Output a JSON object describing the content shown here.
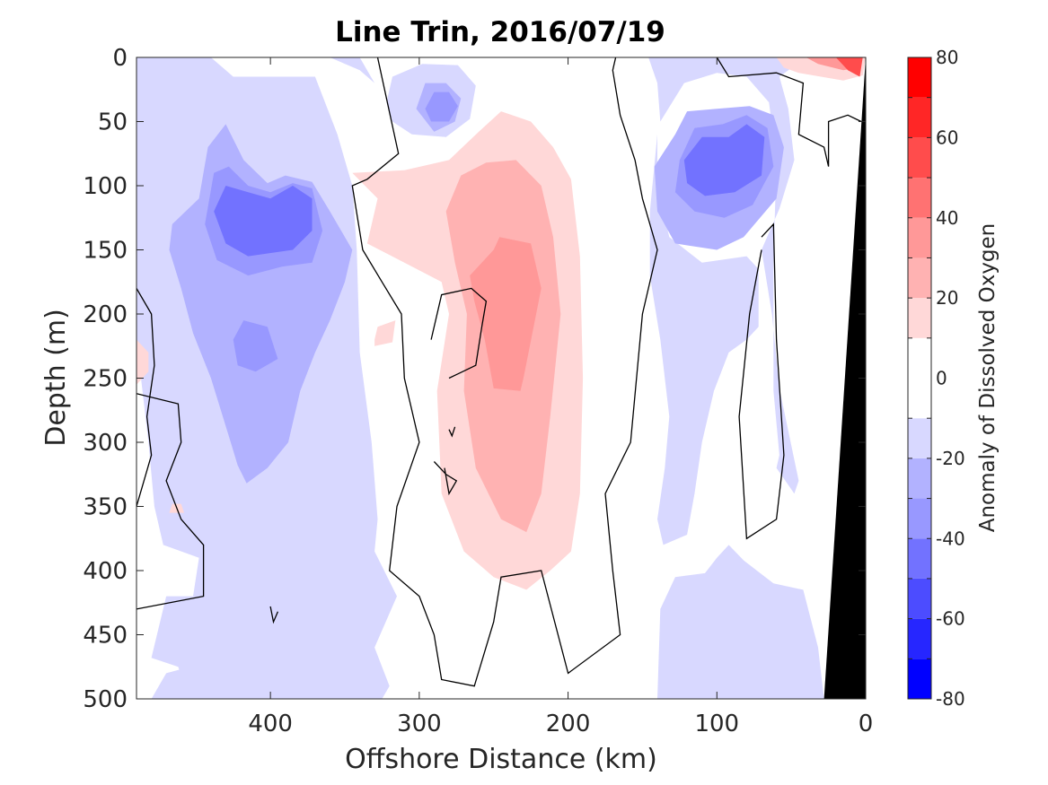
{
  "chart_data": {
    "type": "heatmap",
    "subtype": "filled-contour section",
    "title": "Line Trin, 2016/07/19",
    "xlabel": "Offshore Distance (km)",
    "ylabel": "Depth (m)",
    "xlim": [
      490,
      0
    ],
    "x_reversed": true,
    "ylim": [
      0,
      500
    ],
    "y_reversed": true,
    "x_ticks": [
      400,
      300,
      200,
      100,
      0
    ],
    "y_ticks": [
      0,
      50,
      100,
      150,
      200,
      250,
      300,
      350,
      400,
      450,
      500
    ],
    "colorbar": {
      "label": "Anomaly of Dissolved Oxygen",
      "range": [
        -80,
        80
      ],
      "ticks": [
        -80,
        -60,
        -40,
        -20,
        0,
        20,
        40,
        60,
        80
      ],
      "levels": [
        -80,
        -70,
        -60,
        -50,
        -40,
        -30,
        -20,
        -10,
        10,
        20,
        30,
        40,
        50,
        60,
        70,
        80
      ],
      "colors": [
        "#0000ff",
        "#2626ff",
        "#4c4cff",
        "#7272ff",
        "#9898ff",
        "#b2b2ff",
        "#d8d8ff",
        "#ffffff",
        "#ffd8d8",
        "#ffb2b2",
        "#ff9898",
        "#ff7272",
        "#ff4c4c",
        "#ff2626",
        "#ff0000"
      ]
    },
    "features": [
      {
        "kind": "negative anomaly core",
        "center_km": 385,
        "center_depth_m": 125,
        "min_value": -50
      },
      {
        "kind": "negative anomaly core",
        "center_km": 290,
        "center_depth_m": 45,
        "min_value": -30
      },
      {
        "kind": "negative anomaly core",
        "center_km": 95,
        "center_depth_m": 80,
        "min_value": -50
      },
      {
        "kind": "positive anomaly core",
        "center_km": 245,
        "center_depth_m": 210,
        "min_value": 30
      },
      {
        "kind": "positive anomaly",
        "center_km": 20,
        "center_depth_m": 5,
        "min_value": 60
      }
    ],
    "bathymetry": {
      "color": "#000000",
      "x_km": [
        0,
        0,
        28
      ],
      "depth_m": [
        0,
        500,
        500
      ]
    },
    "grid": false
  }
}
